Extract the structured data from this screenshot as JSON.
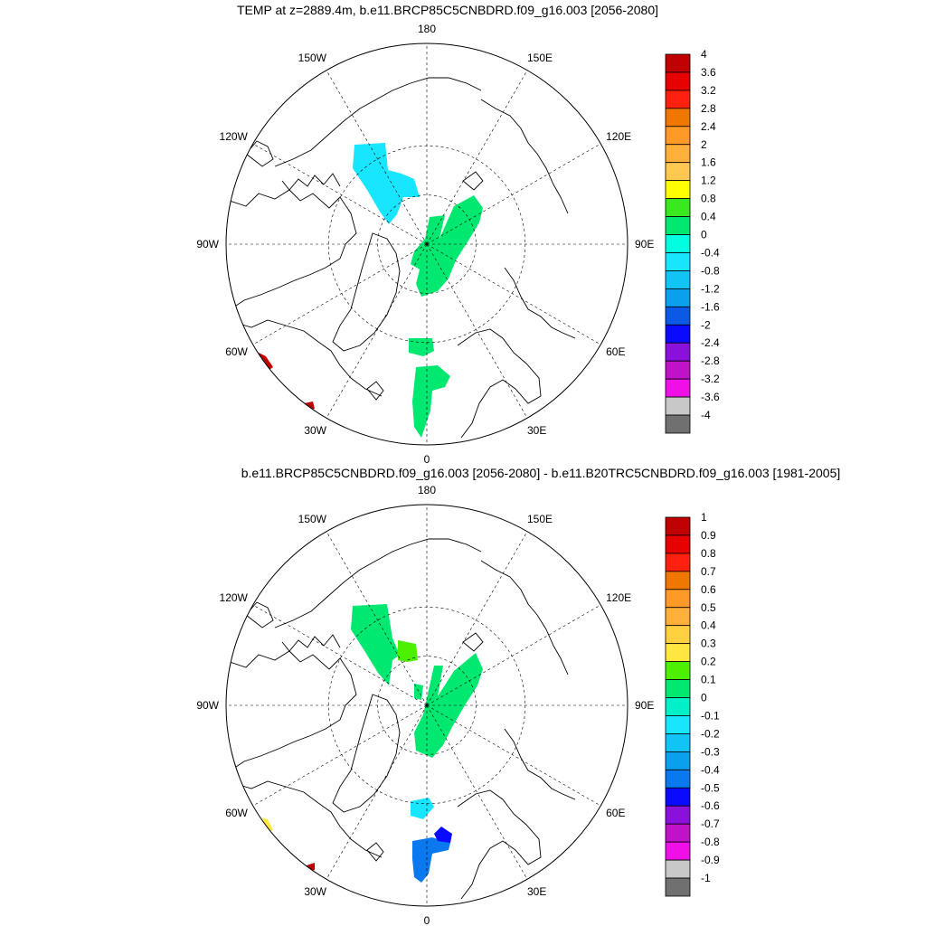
{
  "chart_data": [
    {
      "type": "polar-stereographic-map",
      "title": "TEMP at z=2889.4m, b.e11.BRCP85C5CNBDRD.f09_g16.003 [2056-2080]",
      "longitude_labels": {
        "top": "180",
        "bottom": "0",
        "left": "90W",
        "right": "90E",
        "p150W": "150W",
        "p120W": "120W",
        "p60W": "60W",
        "p30W": "30W",
        "p150E": "150E",
        "p120E": "120E",
        "p60E": "60E",
        "p30E": "30E"
      },
      "colorbar": {
        "labels": [
          "4",
          "3.6",
          "3.2",
          "2.8",
          "2.4",
          "2",
          "1.6",
          "1.2",
          "0.8",
          "0.4",
          "0",
          "-0.4",
          "-0.8",
          "-1.2",
          "-1.6",
          "-2",
          "-2.4",
          "-2.8",
          "-3.2",
          "-3.6",
          "-4"
        ],
        "colors": [
          "#c00000",
          "#e60000",
          "#ff2010",
          "#f07800",
          "#ff9a28",
          "#ffb03a",
          "#ffc850",
          "#ffff00",
          "#39e81f",
          "#00e870",
          "#00ffe0",
          "#18e6ff",
          "#12c3f5",
          "#0aa0ee",
          "#0a5ae6",
          "#0a0aff",
          "#8a10dc",
          "#c012c8",
          "#ee10e6",
          "#c8c8c8",
          "#707070"
        ]
      },
      "regions": [
        {
          "name": "cyan-cells-canadian-arctic",
          "value_range": "-0.8 to -0.4",
          "color": "#18e6ff"
        },
        {
          "name": "green-cells-east-siberian-sector",
          "value_range": "0 to 0.4",
          "color": "#00e870"
        },
        {
          "name": "green-cells-north-atlantic",
          "value_range": "0 to 0.4",
          "color": "#00e870"
        },
        {
          "name": "red-cells-southern-edge",
          "value_range": "3.6 to 4",
          "color": "#c00000"
        }
      ]
    },
    {
      "type": "polar-stereographic-map",
      "title": "b.e11.BRCP85C5CNBDRD.f09_g16.003 [2056-2080] - b.e11.B20TRC5CNBDRD.f09_g16.003 [1981-2005]",
      "longitude_labels": {
        "top": "180",
        "bottom": "0",
        "left": "90W",
        "right": "90E",
        "p150W": "150W",
        "p120W": "120W",
        "p60W": "60W",
        "p30W": "30W",
        "p150E": "150E",
        "p120E": "120E",
        "p60E": "60E",
        "p30E": "30E"
      },
      "colorbar": {
        "labels": [
          "1",
          "0.9",
          "0.8",
          "0.7",
          "0.6",
          "0.5",
          "0.4",
          "0.3",
          "0.2",
          "0.1",
          "0",
          "-0.1",
          "-0.2",
          "-0.3",
          "-0.4",
          "-0.5",
          "-0.6",
          "-0.7",
          "-0.8",
          "-0.9",
          "-1"
        ],
        "colors": [
          "#c00000",
          "#e60000",
          "#ff2010",
          "#f07800",
          "#ff9a28",
          "#ffb03a",
          "#ffd040",
          "#ffe640",
          "#4cf000",
          "#00e870",
          "#00f0c8",
          "#18e6ff",
          "#12c3f5",
          "#0aa0ee",
          "#0a78ee",
          "#0a0aff",
          "#8a10dc",
          "#c012c8",
          "#ee10e6",
          "#c8c8c8",
          "#707070"
        ]
      },
      "regions": [
        {
          "name": "green-cells-canadian-arctic",
          "value_range": "0 to 0.1",
          "color": "#00e870"
        },
        {
          "name": "lime-cells-canadian-arctic",
          "value_range": "0.1 to 0.2",
          "color": "#4cf000"
        },
        {
          "name": "green-cells-east-siberian-sector",
          "value_range": "0 to 0.1",
          "color": "#00e870"
        },
        {
          "name": "lightblue-cells-greenland-sea",
          "value_range": "-0.2 to -0.1",
          "color": "#18e6ff"
        },
        {
          "name": "blue-cells-north-atlantic",
          "value_range": "-0.4 to -0.3",
          "color": "#0a78ee"
        },
        {
          "name": "darkblue-cells-north-atlantic",
          "value_range": "-0.5 to -0.4",
          "color": "#0a0aff"
        },
        {
          "name": "yellow-cells-southern-edge",
          "value_range": "0.3 to 0.4",
          "color": "#ffe640"
        },
        {
          "name": "red-cells-southern-edge",
          "value_range": "0.9 to 1",
          "color": "#c00000"
        }
      ]
    }
  ]
}
